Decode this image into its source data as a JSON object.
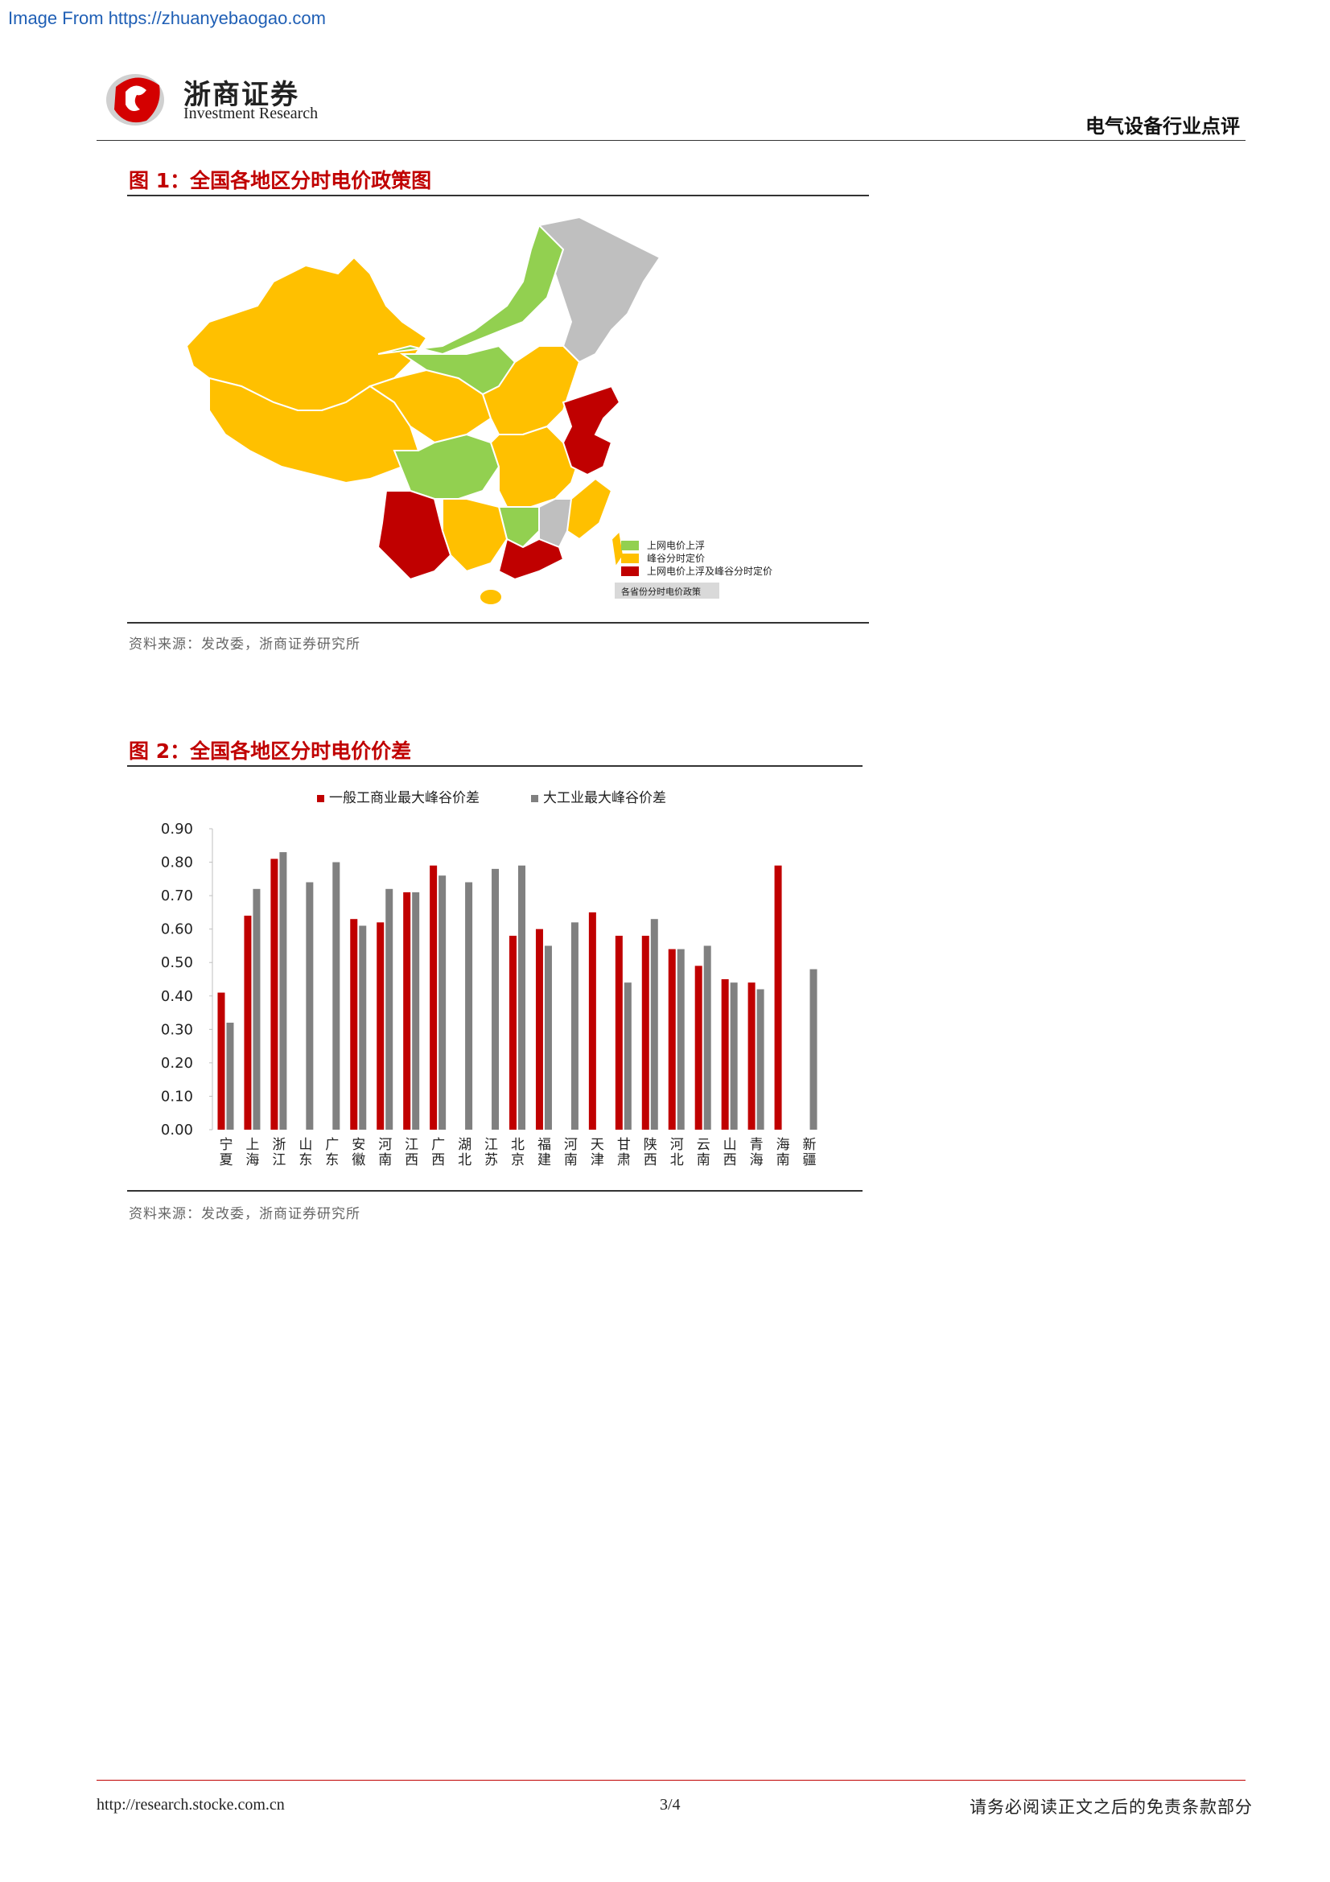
{
  "watermark": "Image From https://zhuanyebaogao.com",
  "header": {
    "logo_cn": "浙商证券",
    "logo_en": "Investment Research",
    "category": "电气设备行业点评"
  },
  "figure1": {
    "title": "图 1：全国各地区分时电价政策图",
    "legend": [
      {
        "label": "上网电价上浮",
        "color": "#92d050"
      },
      {
        "label": "峰谷分时定价",
        "color": "#ffc000"
      },
      {
        "label": "上网电价上浮及峰谷分时定价",
        "color": "#c00000"
      }
    ],
    "legend_caption": "各省份分时电价政策",
    "source": "资料来源：发改委，浙商证券研究所"
  },
  "figure2": {
    "title": "图 2：全国各地区分时电价价差",
    "source": "资料来源：发改委，浙商证券研究所"
  },
  "chart_data": {
    "type": "bar",
    "categories": [
      "宁夏",
      "上海",
      "浙江",
      "山东",
      "广东",
      "安徽",
      "河南",
      "江西",
      "广西",
      "湖北",
      "江苏",
      "北京",
      "福建",
      "河南",
      "天津",
      "甘肃",
      "陕西",
      "河北",
      "云南",
      "山西",
      "青海",
      "海南",
      "新疆"
    ],
    "series": [
      {
        "name": "一般工商业最大峰谷价差",
        "color": "#c00000",
        "values": [
          0.41,
          0.64,
          0.81,
          null,
          null,
          0.63,
          0.62,
          0.71,
          0.79,
          null,
          null,
          0.58,
          0.6,
          null,
          0.65,
          0.58,
          0.58,
          0.54,
          0.49,
          0.45,
          0.44,
          0.79,
          null
        ]
      },
      {
        "name": "大工业最大峰谷价差",
        "color": "#808080",
        "values": [
          0.32,
          0.72,
          0.83,
          0.74,
          0.8,
          0.61,
          0.72,
          0.71,
          0.76,
          0.74,
          0.78,
          0.79,
          0.55,
          0.62,
          null,
          0.44,
          0.63,
          0.54,
          0.55,
          0.44,
          0.42,
          null,
          0.48
        ]
      }
    ],
    "y_ticks": [
      "0.90",
      "0.80",
      "0.70",
      "0.60",
      "0.50",
      "0.40",
      "0.30",
      "0.20",
      "0.10",
      "0.00"
    ],
    "ylim": [
      0,
      0.9
    ],
    "legend_position": "top",
    "grid": false
  },
  "footer": {
    "url": "http://research.stocke.com.cn",
    "page": "3/4",
    "disclaimer": "请务必阅读正文之后的免责条款部分"
  }
}
